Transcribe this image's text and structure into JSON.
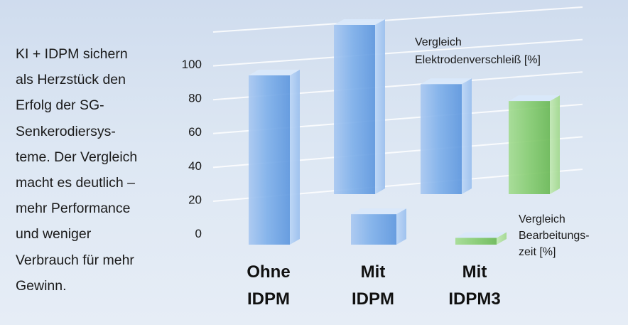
{
  "intro_text": "KI + IDPM sichern als Herzstück den Erfolg der SG-Senkerodiersys-teme. Der Vergleich macht es deutlich – mehr Performance und weniger Verbrauch für mehr Gewinn.",
  "intro_lines": [
    "KI + IDPM sichern",
    "als Herzstück den",
    "Erfolg der SG-",
    "Senkerodiersys-",
    "teme. Der Vergleich",
    "macht es deutlich –",
    "mehr Performance",
    "und weniger",
    "Verbrauch für mehr",
    "Gewinn."
  ],
  "colors": {
    "blue_bar": "#8fb8ea",
    "green_bar": "#8fd27a",
    "text": "#1a1a1a"
  },
  "chart_data": {
    "type": "bar",
    "categories": [
      [
        "Ohne",
        "IDPM"
      ],
      [
        "Mit",
        "IDPM"
      ],
      [
        "Mit",
        "IDPM3"
      ]
    ],
    "ylim": [
      0,
      100
    ],
    "yticks": [
      0,
      20,
      40,
      60,
      80,
      100
    ],
    "grid": true,
    "series": [
      {
        "name": "Vergleich Elektrodenverschleiß [%]",
        "name_lines": [
          "Vergleich",
          "Elektrodenverschleiß [%]"
        ],
        "color": "#8fb8ea",
        "values": [
          null,
          100,
          65
        ],
        "row": "back"
      },
      {
        "name": "Vergleich Bearbeitungszeit [%]",
        "name_lines": [
          "Vergleich",
          "Bearbeitungs-",
          "zeit [%]"
        ],
        "color": "#8fd27a",
        "values": [
          100,
          18,
          4
        ],
        "row": "front"
      },
      {
        "name": "",
        "color": "#8fd27a",
        "values": [
          null,
          null,
          55
        ],
        "row": "back-right"
      }
    ]
  }
}
